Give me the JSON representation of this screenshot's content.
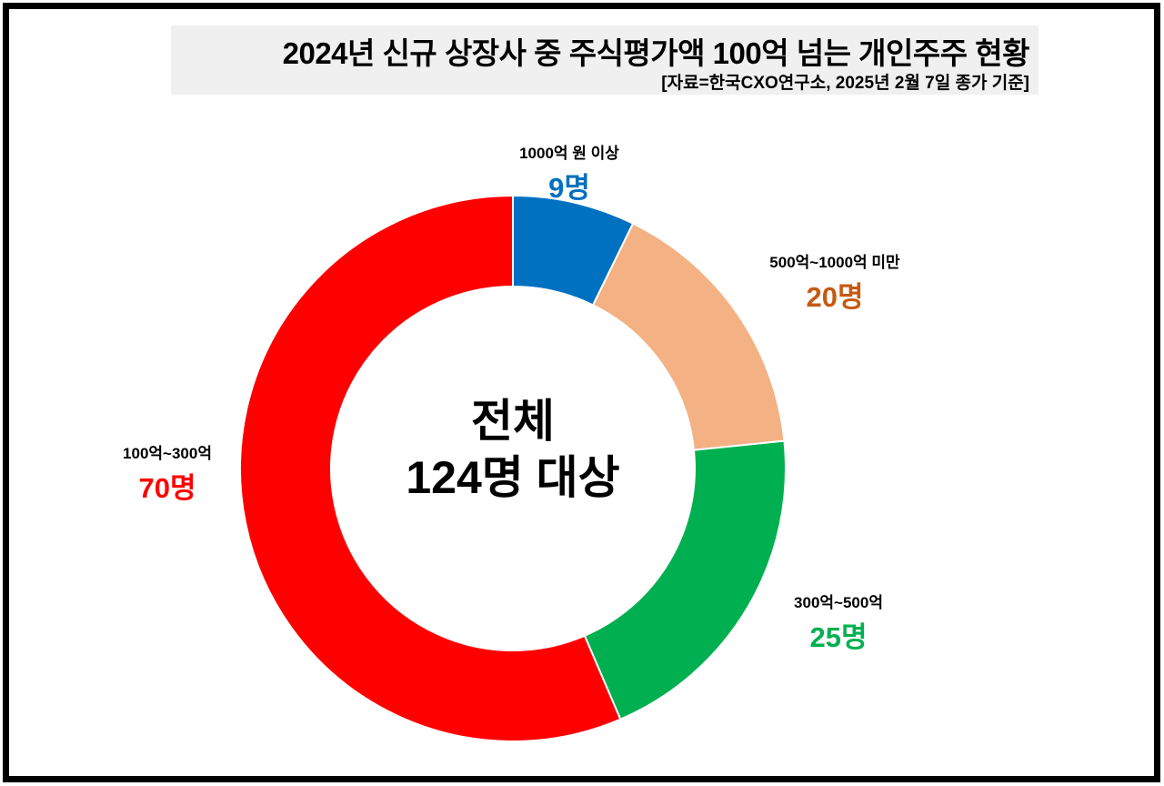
{
  "title": "2024년 신규 상장사 중 주식평가액 100억 넘는 개인주주 현황",
  "subtitle": "[자료=한국CXO연구소, 2025년 2월 7일 종가 기준]",
  "center": {
    "line1": "전체",
    "line2": "124명 대상"
  },
  "labels": [
    {
      "category": "1000억 원 이상",
      "value": "9명",
      "color": "#0070c0"
    },
    {
      "category": "500억~1000억 미만",
      "value": "20명",
      "color": "#c55a11"
    },
    {
      "category": "300억~500억",
      "value": "25명",
      "color": "#00b050"
    },
    {
      "category": "100억~300억",
      "value": "70명",
      "color": "#ff0000"
    }
  ],
  "chart_data": {
    "type": "pie",
    "variant": "donut",
    "title": "2024년 신규 상장사 중 주식평가액 100억 넘는 개인주주 현황",
    "subtitle": "[자료=한국CXO연구소, 2025년 2월 7일 종가 기준]",
    "center_text": "전체 124명 대상",
    "total": 124,
    "unit": "명",
    "categories": [
      "1000억 원 이상",
      "500억~1000억 미만",
      "300억~500억",
      "100억~300억"
    ],
    "values": [
      9,
      20,
      25,
      70
    ],
    "colors": [
      "#0070c0",
      "#f4b183",
      "#00b050",
      "#ff0000"
    ],
    "label_colors": [
      "#0070c0",
      "#c55a11",
      "#00b050",
      "#ff0000"
    ],
    "start_angle_deg": 0,
    "direction": "clockwise",
    "legend": "none (direct labels)"
  }
}
